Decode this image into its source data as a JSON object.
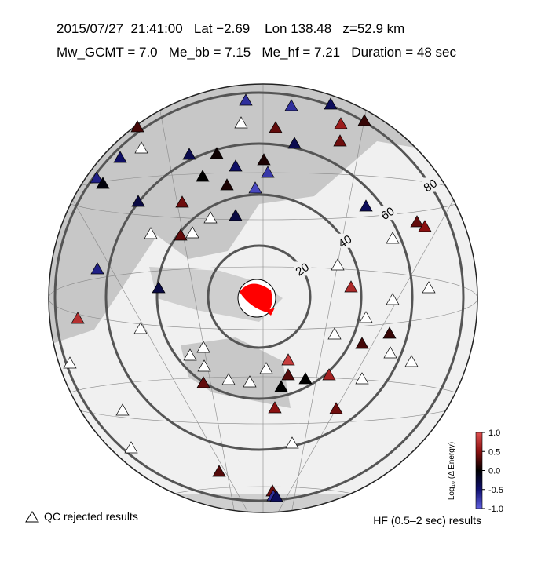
{
  "header": {
    "line1": "2015/07/27  21:41:00   Lat −2.69    Lon 138.48   z=52.9 km",
    "line2": "Mw_GCMT = 7.0   Me_bb = 7.15   Me_hf = 7.21   Duration = 48 sec"
  },
  "distance_rings": [
    20,
    40,
    60,
    80
  ],
  "stations": [
    -0.7,
    -0.7,
    -0.4,
    0.6,
    0.2,
    0.25,
    null,
    0.35,
    0.4,
    -0.35,
    null,
    -0.45,
    -0.35,
    0.05,
    -0.45,
    0.1,
    -0.6,
    -0.05,
    0,
    0.1,
    -0.75,
    -0.85,
    -0.3,
    0.4,
    null,
    -0.3,
    -0.4,
    0.35,
    0.5,
    null,
    null,
    0.35,
    null,
    -0.6,
    null,
    -0.3,
    0.7,
    null,
    null,
    0.75,
    null,
    null,
    0.2,
    null,
    0.25,
    null,
    null,
    null,
    null,
    0.85,
    null,
    0.3,
    null,
    null,
    null,
    0,
    0,
    0.65,
    null,
    0.35,
    null,
    0.5,
    0.4,
    null,
    null,
    null,
    0.3,
    0.4,
    -0.7,
    -0.4
  ],
  "colorbar": {
    "label": "Log₁₀ (Δ Energy)",
    "clim": [
      -1,
      1
    ],
    "ticks": [
      {
        "value": 1,
        "label": "1.0"
      },
      {
        "value": 0.5,
        "label": "0.5"
      },
      {
        "value": 0,
        "label": "0.0"
      },
      {
        "value": -0.5,
        "label": "-0.5"
      },
      {
        "value": -1,
        "label": "-1.0"
      }
    ]
  },
  "legend": {
    "rejected": "QC rejected results",
    "hf": "HF (0.5–2 sec) results"
  }
}
